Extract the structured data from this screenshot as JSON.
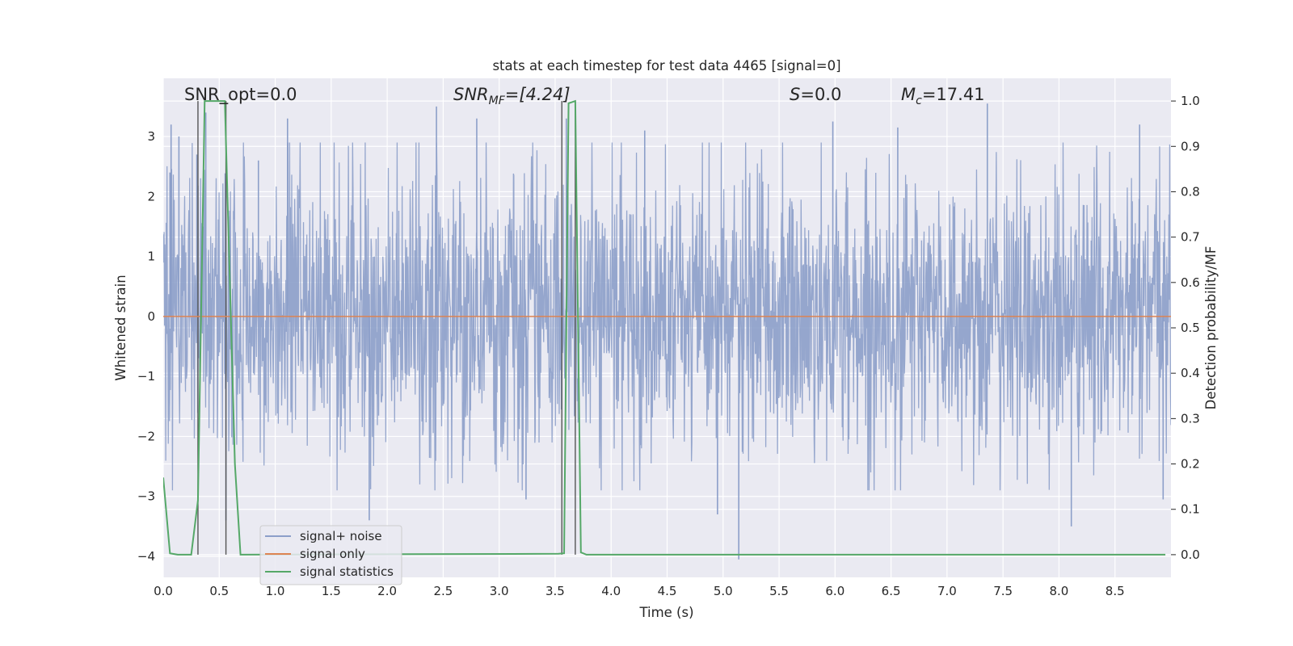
{
  "chart_data": {
    "type": "line",
    "title": "stats at each timestep for test data 4465 [signal=0]",
    "xlabel": "Time (s)",
    "ylabel": "Whitened strain",
    "y2label": "Detection probability/MF",
    "xlim": [
      0,
      9.0
    ],
    "ylim": [
      -4.35,
      3.97
    ],
    "y2lim": [
      -0.05,
      1.05
    ],
    "xticks": [
      "0.0",
      "0.5",
      "1.0",
      "1.5",
      "2.0",
      "2.5",
      "3.0",
      "3.5",
      "4.0",
      "4.5",
      "5.0",
      "5.5",
      "6.0",
      "6.5",
      "7.0",
      "7.5",
      "8.0",
      "8.5"
    ],
    "yticks": [
      "3",
      "2",
      "1",
      "0",
      "−1",
      "−2",
      "−3",
      "−4"
    ],
    "y2ticks": [
      "1.0",
      "0.9",
      "0.8",
      "0.7",
      "0.6",
      "0.5",
      "0.4",
      "0.3",
      "0.2",
      "0.1",
      "0.0"
    ],
    "grid": true,
    "legend_position": "lower-left",
    "legend": [
      "signal+ noise",
      "signal only",
      "signal statistics"
    ],
    "annotations": {
      "snr_opt": "SNR_opt=0.0",
      "snr_mf_main": "SNR",
      "snr_mf_sub": "MF",
      "snr_mf_rest": "=[4.24]",
      "s_main": "S",
      "s_rest": "=0.0",
      "mc_main": "M",
      "mc_sub": "c",
      "mc_rest": "=17.41"
    },
    "series": [
      {
        "name": "signal+ noise",
        "axis": "left",
        "color": "#8c9fc9",
        "description": "whitened strain noise spanning approximately -3 to +3.5 across the full 0-9 s window",
        "spikes": [
          {
            "x": 0.06,
            "y": 2.4
          },
          {
            "x": 0.07,
            "y": 3.2
          },
          {
            "x": 0.14,
            "y": 3.0
          },
          {
            "x": 0.3,
            "y": 2.7
          },
          {
            "x": 0.38,
            "y": 3.4
          },
          {
            "x": 0.56,
            "y": -3.4
          },
          {
            "x": 0.85,
            "y": 2.6
          },
          {
            "x": 1.11,
            "y": 3.3
          },
          {
            "x": 1.84,
            "y": -3.4
          },
          {
            "x": 2.44,
            "y": 3.5
          },
          {
            "x": 2.8,
            "y": 3.3
          },
          {
            "x": 3.24,
            "y": -3.05
          },
          {
            "x": 3.6,
            "y": 3.3
          },
          {
            "x": 4.3,
            "y": 3.1
          },
          {
            "x": 4.95,
            "y": -3.3
          },
          {
            "x": 5.14,
            "y": -4.05
          },
          {
            "x": 5.98,
            "y": 3.25
          },
          {
            "x": 6.56,
            "y": 3.15
          },
          {
            "x": 7.36,
            "y": 3.55
          },
          {
            "x": 8.11,
            "y": -3.5
          },
          {
            "x": 8.72,
            "y": 3.2
          },
          {
            "x": 8.93,
            "y": -3.05
          }
        ]
      },
      {
        "name": "signal only",
        "axis": "left",
        "color": "#dd8452",
        "x": [
          0,
          9.0
        ],
        "y": [
          0,
          0
        ]
      },
      {
        "name": "signal statistics",
        "axis": "right",
        "color": "#55a868",
        "x": [
          0.0,
          0.06,
          0.13,
          0.25,
          0.31,
          0.37,
          0.55,
          0.64,
          0.69,
          3.53,
          3.58,
          3.62,
          3.68,
          3.73,
          3.78,
          8.95
        ],
        "y": [
          0.17,
          0.003,
          0.0,
          0.0,
          0.12,
          1.0,
          1.0,
          0.2,
          0.0,
          0.002,
          0.003,
          0.995,
          1.0,
          0.005,
          0.0,
          0.0
        ]
      }
    ],
    "vertical_markers": {
      "color": "#555555",
      "x": [
        0.31,
        0.56,
        3.56,
        3.68
      ]
    }
  }
}
